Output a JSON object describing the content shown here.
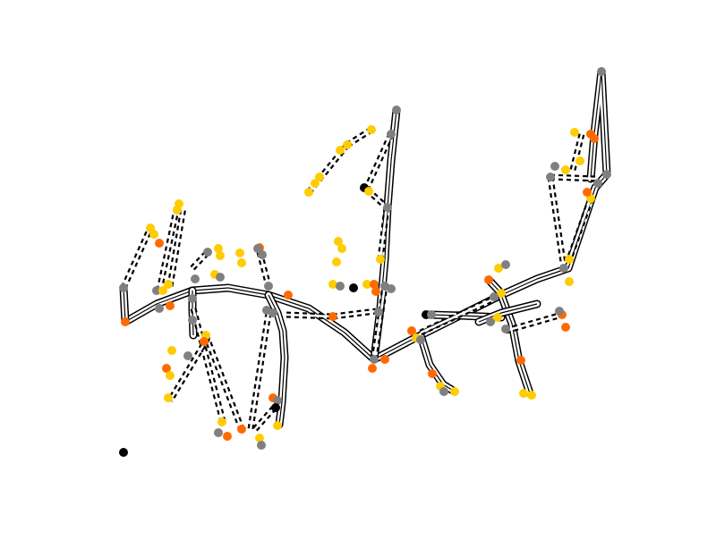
{
  "colors": {
    "background": "#ffffff",
    "edge_solid_outer": "#000000",
    "edge_solid_inner": "#ffffff",
    "edge_dashed": "#000000",
    "node_gray": "#808080",
    "node_yellow": "#ffcc00",
    "node_orange": "#ff6a00",
    "node_black": "#000000"
  },
  "legend": []
}
